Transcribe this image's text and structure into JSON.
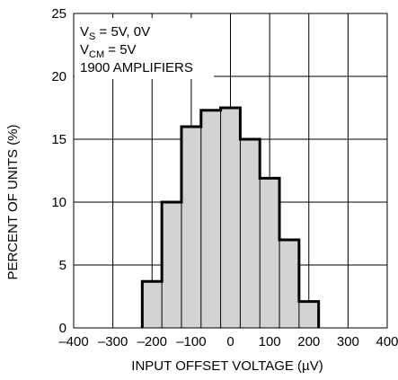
{
  "chart_data": {
    "type": "bar",
    "subtype": "histogram",
    "xlabel": "INPUT OFFSET VOLTAGE (µV)",
    "ylabel": "PERCENT OF UNITS (%)",
    "xlim": [
      -400,
      400
    ],
    "ylim": [
      0,
      25
    ],
    "xticks": [
      -400,
      -300,
      -200,
      -100,
      0,
      100,
      200,
      300,
      400
    ],
    "xtick_labels": [
      "–400",
      "–300",
      "–200",
      "–100",
      "0",
      "100",
      "200",
      "300",
      "400"
    ],
    "yticks": [
      0,
      5,
      10,
      15,
      20,
      25
    ],
    "ytick_labels": [
      "0",
      "5",
      "10",
      "15",
      "20",
      "25"
    ],
    "grid": true,
    "fill_color": "#d3d3d3",
    "bin_edges": [
      -225,
      -175,
      -125,
      -75,
      -25,
      25,
      75,
      125,
      175,
      225
    ],
    "values": [
      3.7,
      10.0,
      16.0,
      17.3,
      17.5,
      15.0,
      11.9,
      7.0,
      2.1
    ],
    "annotations": {
      "line1": {
        "main": "V",
        "sub": "S",
        "rest": " = 5V, 0V"
      },
      "line2": {
        "main": "V",
        "sub": "CM",
        "rest": " = 5V"
      },
      "line3": "1900 AMPLIFIERS"
    }
  }
}
